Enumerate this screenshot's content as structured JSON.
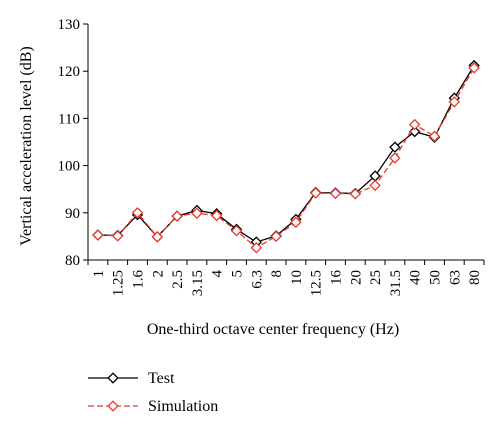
{
  "chart_data": {
    "type": "line",
    "title": "",
    "xlabel": "One-third octave center frequency (Hz)",
    "ylabel": "Vertical acceleration level (dB)",
    "ylim": [
      80,
      130
    ],
    "yticks": [
      80,
      90,
      100,
      110,
      120,
      130
    ],
    "grid": false,
    "legend_position": "bottom-left",
    "categories": [
      "1",
      "1.25",
      "1.6",
      "2",
      "2.5",
      "3.15",
      "4",
      "5",
      "6.3",
      "8",
      "10",
      "12.5",
      "16",
      "20",
      "25",
      "31.5",
      "40",
      "50",
      "63",
      "80"
    ],
    "series": [
      {
        "name": "Test",
        "color": "#000000",
        "line_style": "solid",
        "marker": "diamond",
        "values": [
          85.3,
          85.2,
          89.6,
          84.9,
          89.3,
          90.5,
          89.8,
          86.5,
          83.8,
          85.1,
          88.6,
          94.3,
          94.2,
          94.1,
          97.8,
          103.9,
          107.2,
          106.0,
          114.3,
          121.2
        ]
      },
      {
        "name": "Simulation",
        "color": "#e8392b",
        "line_style": "dashed",
        "marker": "diamond",
        "values": [
          85.3,
          85.1,
          90.0,
          84.9,
          89.3,
          89.9,
          89.4,
          86.2,
          82.6,
          85.0,
          88.0,
          94.2,
          94.1,
          94.0,
          95.8,
          101.6,
          108.7,
          106.2,
          113.5,
          120.7
        ]
      }
    ]
  }
}
